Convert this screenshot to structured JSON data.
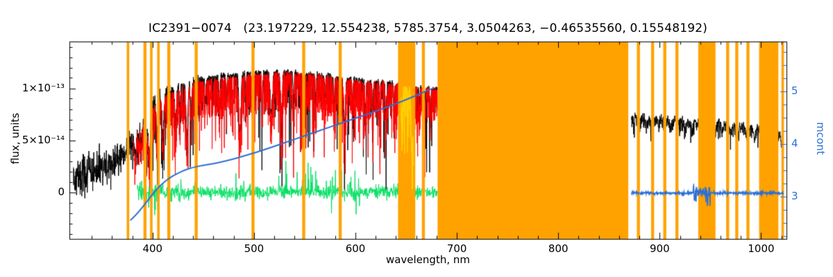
{
  "title": "IC2391−0074   (23.197229, 12.554238, 5785.3754, 3.0504263, −0.46535560, 0.15548192)",
  "colors": {
    "background": "#ffffff",
    "frame": "#000000",
    "observed": "#000000",
    "model": "#ff0000",
    "masked_model": "#ffd400",
    "residual": "#00e060",
    "continuum": "#2b6fd4",
    "mask_band": "#ffa200"
  },
  "axes": {
    "x": {
      "label": "wavelength, nm",
      "range_nm": [
        318,
        1025
      ],
      "minor_step": 20,
      "ticks": [
        {
          "value": 400,
          "label": "400"
        },
        {
          "value": 500,
          "label": "500"
        },
        {
          "value": 600,
          "label": "600"
        },
        {
          "value": 700,
          "label": "700"
        },
        {
          "value": 800,
          "label": "800"
        },
        {
          "value": 900,
          "label": "900"
        },
        {
          "value": 1000,
          "label": "1000"
        }
      ]
    },
    "y_left": {
      "label": "flux, units",
      "range_1e13": [
        -0.45,
        1.45
      ],
      "ticks": [
        {
          "value": 1.0,
          "label": "1×10⁻¹³"
        },
        {
          "value": 0.5,
          "label": "5×10⁻¹⁴"
        },
        {
          "value": 0.0,
          "label": "0"
        }
      ]
    },
    "y_right": {
      "label": "mcont",
      "range": [
        2.2,
        5.95
      ],
      "ticks": [
        {
          "value": 5,
          "label": "5"
        },
        {
          "value": 4,
          "label": "4"
        },
        {
          "value": 3,
          "label": "3"
        }
      ]
    }
  },
  "chart_data": {
    "type": "line",
    "title": "IC2391−0074   (23.197229, 12.554238, 5785.3754, 3.0504263, −0.46535560, 0.15548192)",
    "xlabel": "wavelength, nm",
    "ylabel_left": "flux, units",
    "ylabel_right": "mcont",
    "description": "Observed stellar spectrum (black) with fitted synthetic spectrum (red), fit residuals around zero (green), pseudo-continuum mcont on the right axis (blue) and masked wavelength regions (orange bands). Flux values are in units of 1e-13.",
    "mask_bands_nm": [
      [
        374.5,
        377
      ],
      [
        391,
        394
      ],
      [
        397.5,
        400
      ],
      [
        404.5,
        407
      ],
      [
        414.5,
        417.5
      ],
      [
        441.5,
        444.5
      ],
      [
        497.5,
        500.5
      ],
      [
        547.5,
        550.5
      ],
      [
        583.5,
        586.5
      ],
      [
        642,
        659
      ],
      [
        665.5,
        668.5
      ],
      [
        681,
        869
      ],
      [
        877.5,
        880.5
      ],
      [
        891.5,
        894.5
      ],
      [
        903.5,
        906.5
      ],
      [
        915.5,
        918.5
      ],
      [
        938,
        955
      ],
      [
        965.5,
        968.5
      ],
      [
        974.5,
        977.5
      ],
      [
        985.5,
        988.5
      ],
      [
        998,
        1017
      ],
      [
        1020,
        1022.5
      ]
    ],
    "absorption_lines_nm": [
      [
        383.0,
        0.8,
        0.4
      ],
      [
        386.5,
        0.5,
        0.25
      ],
      [
        389.0,
        0.6,
        0.3
      ],
      [
        393.4,
        1.0,
        0.6
      ],
      [
        396.8,
        1.0,
        0.55
      ],
      [
        404.6,
        0.7,
        0.4
      ],
      [
        410.2,
        0.8,
        0.45
      ],
      [
        416.0,
        0.5,
        0.28
      ],
      [
        422.7,
        0.7,
        0.35
      ],
      [
        427.0,
        0.5,
        0.25
      ],
      [
        434.0,
        0.9,
        0.5
      ],
      [
        438.3,
        0.6,
        0.3
      ],
      [
        443.0,
        0.5,
        0.25
      ],
      [
        452.0,
        0.5,
        0.22
      ],
      [
        466.0,
        0.5,
        0.22
      ],
      [
        473.0,
        0.4,
        0.18
      ],
      [
        486.1,
        0.9,
        0.5
      ],
      [
        492.0,
        0.4,
        0.2
      ],
      [
        499.0,
        0.6,
        0.3
      ],
      [
        508.0,
        0.4,
        0.2
      ],
      [
        517.0,
        1.0,
        0.35
      ],
      [
        527.0,
        0.8,
        0.32
      ],
      [
        539.0,
        0.5,
        0.25
      ],
      [
        549.0,
        0.6,
        0.3
      ],
      [
        561.0,
        0.5,
        0.22
      ],
      [
        570.0,
        0.4,
        0.2
      ],
      [
        579.0,
        0.5,
        0.22
      ],
      [
        585.0,
        0.6,
        0.28
      ],
      [
        589.3,
        0.8,
        0.4
      ],
      [
        597.0,
        0.4,
        0.18
      ],
      [
        610.0,
        0.5,
        0.22
      ],
      [
        617.0,
        0.5,
        0.25
      ],
      [
        624.0,
        0.4,
        0.18
      ],
      [
        630.0,
        0.6,
        0.28
      ],
      [
        638.0,
        0.4,
        0.18
      ],
      [
        646.0,
        0.6,
        0.28
      ],
      [
        652.0,
        0.4,
        0.2
      ],
      [
        656.3,
        1.1,
        0.55
      ],
      [
        663.0,
        0.4,
        0.18
      ],
      [
        668.0,
        0.5,
        0.25
      ],
      [
        674.0,
        0.4,
        0.2
      ]
    ],
    "absorption_lines_right_nm": [
      [
        871.0,
        0.8,
        0.12
      ],
      [
        880.0,
        0.7,
        0.1
      ],
      [
        887.0,
        0.6,
        0.09
      ],
      [
        893.0,
        0.8,
        0.12
      ],
      [
        899.0,
        0.6,
        0.09
      ],
      [
        905.0,
        0.7,
        0.1
      ],
      [
        911.0,
        0.6,
        0.09
      ],
      [
        917.0,
        0.7,
        0.1
      ],
      [
        925.0,
        0.8,
        0.1
      ],
      [
        932.0,
        0.9,
        0.11
      ],
      [
        940.0,
        1.0,
        0.12
      ],
      [
        947.0,
        0.8,
        0.1
      ],
      [
        955.0,
        0.8,
        0.1
      ],
      [
        962.0,
        0.7,
        0.1
      ],
      [
        970.0,
        0.8,
        0.11
      ],
      [
        977.0,
        0.7,
        0.1
      ],
      [
        985.0,
        0.8,
        0.11
      ],
      [
        993.0,
        0.8,
        0.12
      ],
      [
        1000.0,
        1.0,
        0.13
      ],
      [
        1007.0,
        0.8,
        0.12
      ],
      [
        1014.0,
        0.9,
        0.12
      ],
      [
        1020.0,
        0.8,
        0.11
      ]
    ],
    "series": {
      "observed_black": {
        "label": "observed flux",
        "segments": [
          {
            "seed": 42,
            "range_nm": [
              322,
              681
            ],
            "dx": 0.2,
            "envelope_x_nm": [
              322,
              335,
              350,
              362,
              372,
              378,
              383,
              388,
              393,
              398,
              404,
              410,
              417,
              425,
              435,
              445,
              455,
              465,
              478,
              490,
              505,
              520,
              535,
              550,
              565,
              580,
              595,
              610,
              625,
              640,
              655,
              668,
              681
            ],
            "envelope_y_1e13": [
              0.14,
              0.18,
              0.23,
              0.28,
              0.35,
              0.46,
              0.56,
              0.66,
              0.73,
              0.81,
              0.89,
              0.94,
              0.99,
              1.03,
              1.07,
              1.09,
              1.1,
              1.11,
              1.13,
              1.14,
              1.15,
              1.16,
              1.15,
              1.14,
              1.13,
              1.11,
              1.09,
              1.07,
              1.06,
              1.04,
              1.02,
              1.0,
              0.99
            ],
            "noise_x_nm": [
              322,
              355,
              380,
              400,
              425,
              455,
              681
            ],
            "noise_y_1e13": [
              0.1,
              0.09,
              0.065,
              0.045,
              0.025,
              0.016,
              0.014
            ],
            "spikes": [
              0.045,
              0.3,
              0.5,
              0.35,
              0.06,
              0.28
            ],
            "spikes_from_nm": 380
          },
          {
            "seed": 11,
            "range_nm": [
              872,
              1022
            ],
            "dx": 0.2,
            "envelope_x_nm": [
              872,
              885,
              900,
              915,
              930,
              945,
              960,
              975,
              990,
              1005,
              1015,
              1022
            ],
            "envelope_y_1e13": [
              0.735,
              0.725,
              0.715,
              0.7,
              0.69,
              0.68,
              0.665,
              0.65,
              0.625,
              0.6,
              0.575,
              0.555
            ],
            "noise_x_nm": [
              872,
              1022
            ],
            "noise_y_1e13": [
              0.018,
              0.018
            ],
            "spikes": [
              0.05,
              0.1,
              0.2,
              0.45,
              0.03,
              0.1
            ],
            "spikes_from_nm": 0
          }
        ]
      },
      "model_red": {
        "label": "synthetic model flux",
        "seed": 9,
        "range_nm": [
          381,
          681
        ],
        "dx": 0.15,
        "envelope_x_nm": [
          381,
          388,
          395,
          403,
          412,
          422,
          432,
          443,
          455,
          468,
          482,
          496,
          512,
          528,
          544,
          560,
          576,
          592,
          608,
          624,
          640,
          656,
          670,
          681
        ],
        "envelope_y_1e13": [
          0.5,
          0.62,
          0.74,
          0.84,
          0.91,
          0.97,
          1.02,
          1.05,
          1.07,
          1.09,
          1.1,
          1.12,
          1.13,
          1.14,
          1.13,
          1.12,
          1.1,
          1.08,
          1.06,
          1.05,
          1.03,
          1.01,
          0.99,
          0.98
        ],
        "noise": 0.012,
        "spikes": [
          0.07,
          0.25,
          0.45,
          0.62,
          0.04,
          0.3
        ],
        "spikes_from_nm": 0
      },
      "masked_model_yellow": {
        "label": "model inside masked band",
        "seed": 17,
        "range_nm": [
          645,
          657
        ],
        "dx": 0.15
      },
      "residuals_green": {
        "label": "fit residuals",
        "seed": 5,
        "range_nm": [
          385,
          681
        ],
        "dx": 0.3,
        "baseline": 0,
        "rms_x_nm": [
          385,
          420,
          450,
          681
        ],
        "rms_y_1e13": [
          0.06,
          0.045,
          0.033,
          0.03
        ],
        "spike_regions": [
          {
            "range": [
              388,
              408
            ],
            "bias": -1,
            "p": 0.12,
            "max": 0.17
          },
          {
            "range": [
              478,
              492
            ],
            "bias": 1,
            "p": 0.08,
            "max": 0.16
          },
          {
            "range": [
              524,
              562
            ],
            "bias": 1,
            "p": 0.1,
            "max": 0.3
          },
          {
            "range": [
              570,
              604
            ],
            "bias": 0,
            "p": 0.12,
            "max": 0.2
          },
          {
            "range": [
              640,
              660
            ],
            "bias": 0,
            "p": 0.08,
            "max": 0.12
          }
        ]
      },
      "continuum_blue": {
        "label": "mcont",
        "x_nm": [
          378,
          384,
          390,
          396,
          402,
          409,
          416,
          424,
          432,
          440,
          450,
          460,
          472,
          484,
          496,
          508,
          520,
          532,
          544,
          556,
          568,
          580,
          592,
          604,
          616,
          628,
          640,
          652,
          664,
          672,
          678
        ],
        "mcont": [
          2.55,
          2.66,
          2.8,
          2.95,
          3.1,
          3.24,
          3.35,
          3.44,
          3.51,
          3.56,
          3.6,
          3.63,
          3.68,
          3.74,
          3.81,
          3.88,
          3.96,
          4.04,
          4.12,
          4.2,
          4.28,
          4.36,
          4.44,
          4.52,
          4.6,
          4.68,
          4.77,
          4.86,
          4.96,
          5.03,
          5.07
        ]
      },
      "continuum_blue_right": {
        "label": "mcont (red arm)",
        "seed": 3,
        "range_nm": [
          872,
          1022
        ],
        "dx": 0.25,
        "level": 3.07,
        "burst_nm": [
          933,
          950
        ]
      }
    }
  }
}
